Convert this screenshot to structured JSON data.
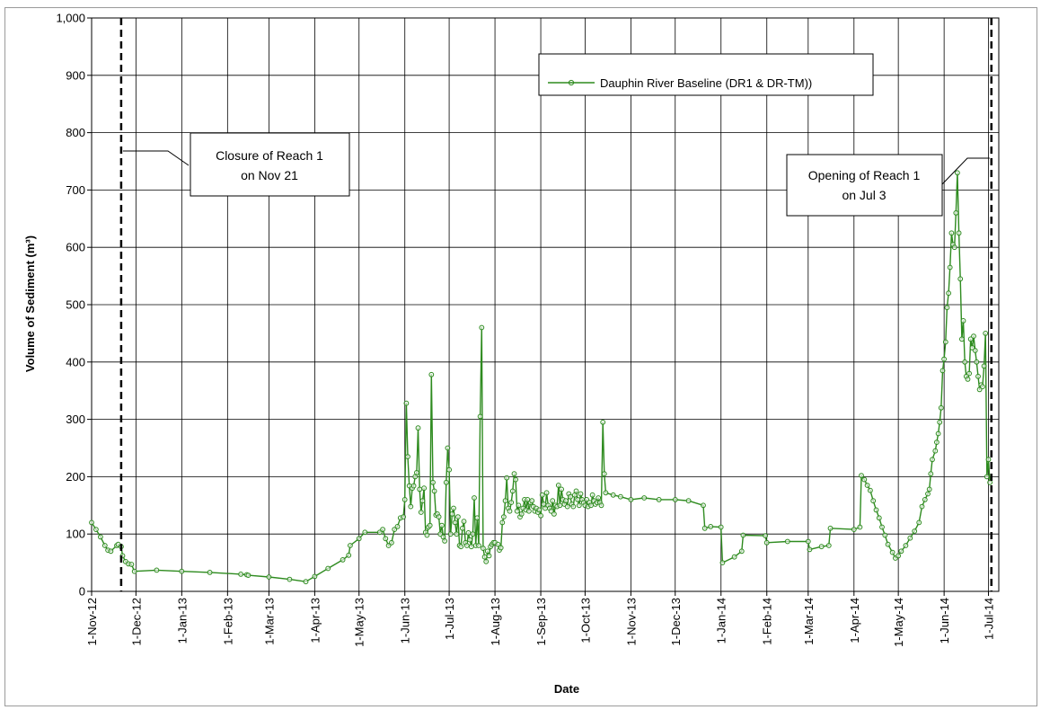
{
  "chart_data": {
    "type": "line",
    "title": "",
    "xlabel": "Date",
    "ylabel": "Volume of Sediment (m³)",
    "ylim": [
      0,
      1000
    ],
    "y_ticks": [
      "0",
      "100",
      "200",
      "300",
      "400",
      "500",
      "600",
      "700",
      "800",
      "900",
      "1,000"
    ],
    "xlim": [
      "2012-11-01",
      "2014-07-08"
    ],
    "x_ticks": [
      {
        "date": "2012-11-01",
        "label": "1-Nov-12"
      },
      {
        "date": "2012-12-01",
        "label": "1-Dec-12"
      },
      {
        "date": "2013-01-01",
        "label": "1-Jan-13"
      },
      {
        "date": "2013-02-01",
        "label": "1-Feb-13"
      },
      {
        "date": "2013-03-01",
        "label": "1-Mar-13"
      },
      {
        "date": "2013-04-01",
        "label": "1-Apr-13"
      },
      {
        "date": "2013-05-01",
        "label": "1-May-13"
      },
      {
        "date": "2013-06-01",
        "label": "1-Jun-13"
      },
      {
        "date": "2013-07-01",
        "label": "1-Jul-13"
      },
      {
        "date": "2013-08-01",
        "label": "1-Aug-13"
      },
      {
        "date": "2013-09-01",
        "label": "1-Sep-13"
      },
      {
        "date": "2013-10-01",
        "label": "1-Oct-13"
      },
      {
        "date": "2013-11-01",
        "label": "1-Nov-13"
      },
      {
        "date": "2013-12-01",
        "label": "1-Dec-13"
      },
      {
        "date": "2014-01-01",
        "label": "1-Jan-14"
      },
      {
        "date": "2014-02-01",
        "label": "1-Feb-14"
      },
      {
        "date": "2014-03-01",
        "label": "1-Mar-14"
      },
      {
        "date": "2014-04-01",
        "label": "1-Apr-14"
      },
      {
        "date": "2014-05-01",
        "label": "1-May-14"
      },
      {
        "date": "2014-06-01",
        "label": "1-Jun-14"
      },
      {
        "date": "2014-07-01",
        "label": "1-Jul-14"
      }
    ],
    "grid": true,
    "legend_position": "top-right",
    "series_color": "#2e8b1f",
    "series": [
      {
        "name": "Dauphin River Baseline (DR1 & DR-TM))",
        "points": [
          [
            "2012-11-01",
            120
          ],
          [
            "2012-11-04",
            108
          ],
          [
            "2012-11-07",
            95
          ],
          [
            "2012-11-10",
            80
          ],
          [
            "2012-11-12",
            72
          ],
          [
            "2012-11-14",
            70
          ],
          [
            "2012-11-18",
            80
          ],
          [
            "2012-11-19",
            82
          ],
          [
            "2012-11-21",
            78
          ],
          [
            "2012-11-22",
            62
          ],
          [
            "2012-11-24",
            52
          ],
          [
            "2012-11-26",
            48
          ],
          [
            "2012-11-28",
            47
          ],
          [
            "2012-11-30",
            35
          ],
          [
            "2012-12-15",
            37
          ],
          [
            "2013-01-01",
            35
          ],
          [
            "2013-01-20",
            33
          ],
          [
            "2013-02-10",
            30
          ],
          [
            "2013-02-14",
            29
          ],
          [
            "2013-02-15",
            28
          ],
          [
            "2013-03-01",
            25
          ],
          [
            "2013-03-15",
            21
          ],
          [
            "2013-03-26",
            17
          ],
          [
            "2013-04-01",
            26
          ],
          [
            "2013-04-10",
            40
          ],
          [
            "2013-04-20",
            55
          ],
          [
            "2013-04-24",
            63
          ],
          [
            "2013-04-25",
            80
          ],
          [
            "2013-05-01",
            92
          ],
          [
            "2013-05-05",
            103
          ],
          [
            "2013-05-15",
            103
          ],
          [
            "2013-05-17",
            108
          ],
          [
            "2013-05-19",
            92
          ],
          [
            "2013-05-21",
            80
          ],
          [
            "2013-05-23",
            85
          ],
          [
            "2013-05-25",
            108
          ],
          [
            "2013-05-27",
            113
          ],
          [
            "2013-05-29",
            128
          ],
          [
            "2013-05-31",
            130
          ],
          [
            "2013-06-01",
            160
          ],
          [
            "2013-06-02",
            328
          ],
          [
            "2013-06-03",
            235
          ],
          [
            "2013-06-04",
            184
          ],
          [
            "2013-06-05",
            148
          ],
          [
            "2013-06-06",
            180
          ],
          [
            "2013-06-07",
            184
          ],
          [
            "2013-06-08",
            200
          ],
          [
            "2013-06-09",
            207
          ],
          [
            "2013-06-10",
            285
          ],
          [
            "2013-06-11",
            178
          ],
          [
            "2013-06-12",
            138
          ],
          [
            "2013-06-13",
            158
          ],
          [
            "2013-06-14",
            180
          ],
          [
            "2013-06-15",
            103
          ],
          [
            "2013-06-16",
            98
          ],
          [
            "2013-06-17",
            112
          ],
          [
            "2013-06-18",
            115
          ],
          [
            "2013-06-19",
            378
          ],
          [
            "2013-06-20",
            190
          ],
          [
            "2013-06-21",
            175
          ],
          [
            "2013-06-22",
            133
          ],
          [
            "2013-06-23",
            135
          ],
          [
            "2013-06-24",
            130
          ],
          [
            "2013-06-25",
            100
          ],
          [
            "2013-06-26",
            115
          ],
          [
            "2013-06-27",
            95
          ],
          [
            "2013-06-28",
            88
          ],
          [
            "2013-06-29",
            190
          ],
          [
            "2013-06-30",
            250
          ],
          [
            "2013-07-01",
            212
          ],
          [
            "2013-07-02",
            100
          ],
          [
            "2013-07-03",
            135
          ],
          [
            "2013-07-04",
            145
          ],
          [
            "2013-07-05",
            120
          ],
          [
            "2013-07-06",
            100
          ],
          [
            "2013-07-07",
            130
          ],
          [
            "2013-07-08",
            80
          ],
          [
            "2013-07-09",
            78
          ],
          [
            "2013-07-10",
            110
          ],
          [
            "2013-07-11",
            122
          ],
          [
            "2013-07-12",
            85
          ],
          [
            "2013-07-13",
            80
          ],
          [
            "2013-07-14",
            102
          ],
          [
            "2013-07-15",
            90
          ],
          [
            "2013-07-16",
            78
          ],
          [
            "2013-07-17",
            100
          ],
          [
            "2013-07-18",
            163
          ],
          [
            "2013-07-19",
            80
          ],
          [
            "2013-07-20",
            128
          ],
          [
            "2013-07-21",
            80
          ],
          [
            "2013-07-22",
            305
          ],
          [
            "2013-07-23",
            460
          ],
          [
            "2013-07-24",
            75
          ],
          [
            "2013-07-25",
            60
          ],
          [
            "2013-07-26",
            52
          ],
          [
            "2013-07-27",
            70
          ],
          [
            "2013-07-28",
            62
          ],
          [
            "2013-07-29",
            78
          ],
          [
            "2013-07-30",
            82
          ],
          [
            "2013-07-31",
            85
          ],
          [
            "2013-08-01",
            85
          ],
          [
            "2013-08-03",
            82
          ],
          [
            "2013-08-04",
            72
          ],
          [
            "2013-08-05",
            76
          ],
          [
            "2013-08-06",
            120
          ],
          [
            "2013-08-07",
            130
          ],
          [
            "2013-08-08",
            158
          ],
          [
            "2013-08-09",
            198
          ],
          [
            "2013-08-10",
            145
          ],
          [
            "2013-08-11",
            140
          ],
          [
            "2013-08-12",
            155
          ],
          [
            "2013-08-13",
            175
          ],
          [
            "2013-08-14",
            205
          ],
          [
            "2013-08-15",
            195
          ],
          [
            "2013-08-16",
            140
          ],
          [
            "2013-08-17",
            150
          ],
          [
            "2013-08-18",
            130
          ],
          [
            "2013-08-19",
            135
          ],
          [
            "2013-08-20",
            145
          ],
          [
            "2013-08-21",
            160
          ],
          [
            "2013-08-22",
            142
          ],
          [
            "2013-08-23",
            160
          ],
          [
            "2013-08-24",
            140
          ],
          [
            "2013-08-25",
            155
          ],
          [
            "2013-08-26",
            158
          ],
          [
            "2013-08-27",
            148
          ],
          [
            "2013-08-28",
            140
          ],
          [
            "2013-08-29",
            145
          ],
          [
            "2013-08-30",
            138
          ],
          [
            "2013-08-31",
            142
          ],
          [
            "2013-09-01",
            132
          ],
          [
            "2013-09-02",
            168
          ],
          [
            "2013-09-03",
            152
          ],
          [
            "2013-09-04",
            145
          ],
          [
            "2013-09-05",
            172
          ],
          [
            "2013-09-06",
            150
          ],
          [
            "2013-09-07",
            145
          ],
          [
            "2013-09-08",
            140
          ],
          [
            "2013-09-09",
            158
          ],
          [
            "2013-09-10",
            135
          ],
          [
            "2013-09-11",
            150
          ],
          [
            "2013-09-12",
            148
          ],
          [
            "2013-09-13",
            185
          ],
          [
            "2013-09-14",
            150
          ],
          [
            "2013-09-15",
            178
          ],
          [
            "2013-09-16",
            160
          ],
          [
            "2013-09-17",
            152
          ],
          [
            "2013-09-18",
            158
          ],
          [
            "2013-09-19",
            148
          ],
          [
            "2013-09-20",
            170
          ],
          [
            "2013-09-21",
            165
          ],
          [
            "2013-09-22",
            152
          ],
          [
            "2013-09-23",
            148
          ],
          [
            "2013-09-24",
            168
          ],
          [
            "2013-09-25",
            175
          ],
          [
            "2013-09-26",
            160
          ],
          [
            "2013-09-27",
            150
          ],
          [
            "2013-09-28",
            170
          ],
          [
            "2013-09-29",
            160
          ],
          [
            "2013-09-30",
            155
          ],
          [
            "2013-10-01",
            150
          ],
          [
            "2013-10-02",
            160
          ],
          [
            "2013-10-03",
            148
          ],
          [
            "2013-10-04",
            155
          ],
          [
            "2013-10-05",
            150
          ],
          [
            "2013-10-06",
            168
          ],
          [
            "2013-10-07",
            158
          ],
          [
            "2013-10-08",
            152
          ],
          [
            "2013-10-09",
            155
          ],
          [
            "2013-10-10",
            163
          ],
          [
            "2013-10-11",
            155
          ],
          [
            "2013-10-12",
            150
          ],
          [
            "2013-10-13",
            295
          ],
          [
            "2013-10-14",
            205
          ],
          [
            "2013-10-15",
            172
          ],
          [
            "2013-10-20",
            168
          ],
          [
            "2013-10-25",
            165
          ],
          [
            "2013-11-01",
            160
          ],
          [
            "2013-11-10",
            163
          ],
          [
            "2013-11-20",
            160
          ],
          [
            "2013-12-01",
            160
          ],
          [
            "2013-12-10",
            158
          ],
          [
            "2013-12-20",
            150
          ],
          [
            "2013-12-21",
            110
          ],
          [
            "2013-12-25",
            113
          ],
          [
            "2014-01-01",
            112
          ],
          [
            "2014-01-02",
            50
          ],
          [
            "2014-01-10",
            60
          ],
          [
            "2014-01-15",
            70
          ],
          [
            "2014-01-16",
            98
          ],
          [
            "2014-01-31",
            97
          ],
          [
            "2014-02-01",
            85
          ],
          [
            "2014-02-15",
            87
          ],
          [
            "2014-03-01",
            87
          ],
          [
            "2014-03-02",
            73
          ],
          [
            "2014-03-10",
            78
          ],
          [
            "2014-03-15",
            80
          ],
          [
            "2014-03-16",
            110
          ],
          [
            "2014-04-01",
            108
          ],
          [
            "2014-04-05",
            112
          ],
          [
            "2014-04-06",
            202
          ],
          [
            "2014-04-08",
            195
          ],
          [
            "2014-04-10",
            185
          ],
          [
            "2014-04-12",
            176
          ],
          [
            "2014-04-14",
            158
          ],
          [
            "2014-04-16",
            142
          ],
          [
            "2014-04-18",
            128
          ],
          [
            "2014-04-20",
            112
          ],
          [
            "2014-04-22",
            98
          ],
          [
            "2014-04-24",
            82
          ],
          [
            "2014-04-27",
            68
          ],
          [
            "2014-04-29",
            58
          ],
          [
            "2014-05-01",
            62
          ],
          [
            "2014-05-03",
            70
          ],
          [
            "2014-05-06",
            80
          ],
          [
            "2014-05-09",
            93
          ],
          [
            "2014-05-12",
            105
          ],
          [
            "2014-05-15",
            120
          ],
          [
            "2014-05-17",
            148
          ],
          [
            "2014-05-19",
            160
          ],
          [
            "2014-05-21",
            170
          ],
          [
            "2014-05-22",
            178
          ],
          [
            "2014-05-23",
            205
          ],
          [
            "2014-05-24",
            230
          ],
          [
            "2014-05-26",
            245
          ],
          [
            "2014-05-27",
            260
          ],
          [
            "2014-05-28",
            275
          ],
          [
            "2014-05-29",
            295
          ],
          [
            "2014-05-30",
            320
          ],
          [
            "2014-05-31",
            385
          ],
          [
            "2014-06-01",
            405
          ],
          [
            "2014-06-02",
            435
          ],
          [
            "2014-06-03",
            495
          ],
          [
            "2014-06-04",
            520
          ],
          [
            "2014-06-05",
            565
          ],
          [
            "2014-06-06",
            625
          ],
          [
            "2014-06-07",
            605
          ],
          [
            "2014-06-08",
            600
          ],
          [
            "2014-06-09",
            660
          ],
          [
            "2014-06-10",
            730
          ],
          [
            "2014-06-11",
            625
          ],
          [
            "2014-06-12",
            545
          ],
          [
            "2014-06-13",
            440
          ],
          [
            "2014-06-14",
            472
          ],
          [
            "2014-06-15",
            400
          ],
          [
            "2014-06-16",
            375
          ],
          [
            "2014-06-17",
            370
          ],
          [
            "2014-06-18",
            380
          ],
          [
            "2014-06-19",
            440
          ],
          [
            "2014-06-20",
            425
          ],
          [
            "2014-06-21",
            445
          ],
          [
            "2014-06-22",
            420
          ],
          [
            "2014-06-23",
            400
          ],
          [
            "2014-06-24",
            375
          ],
          [
            "2014-06-25",
            352
          ],
          [
            "2014-06-26",
            360
          ],
          [
            "2014-06-27",
            357
          ],
          [
            "2014-06-28",
            393
          ],
          [
            "2014-06-29",
            450
          ],
          [
            "2014-06-30",
            200
          ],
          [
            "2014-07-01",
            230
          ],
          [
            "2014-07-02",
            190
          ]
        ]
      }
    ],
    "annotations": [
      {
        "date": "2012-11-21",
        "line1": "Closure of Reach 1",
        "line2": "on Nov 21"
      },
      {
        "date": "2014-07-03",
        "line1": "Opening of Reach 1",
        "line2": "on Jul 3"
      }
    ]
  }
}
